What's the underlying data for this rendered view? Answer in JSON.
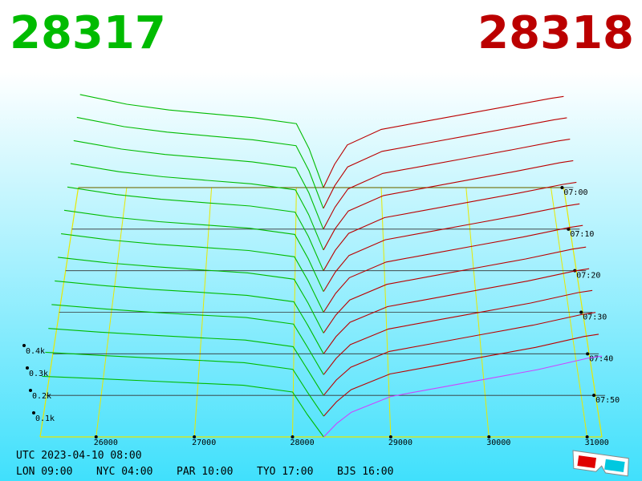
{
  "chart_data": {
    "type": "depth3d",
    "bid_label": "28317",
    "ask_label": "28318",
    "bid_color": "#00bb00",
    "ask_color": "#bb0000",
    "latest_color": "#cc44ff",
    "grid_color": "#e8e800",
    "xlim": [
      25430,
      31150
    ],
    "xticks": [
      26000,
      27000,
      28000,
      29000,
      30000,
      31000
    ],
    "ylim": [
      0,
      500
    ],
    "yticks": [
      {
        "value": 100,
        "label": "0.1k"
      },
      {
        "value": 200,
        "label": "0.2k"
      },
      {
        "value": 300,
        "label": "0.3k"
      },
      {
        "value": 400,
        "label": "0.4k"
      }
    ],
    "time_lim": [
      "07:00",
      "08:00"
    ],
    "time_ticks": [
      "07:00",
      "07:10",
      "07:20",
      "07:30",
      "07:40",
      "07:50"
    ],
    "bid_prices": [
      25450,
      26000,
      26500,
      27000,
      27500,
      28000,
      28150,
      28317
    ],
    "ask_prices": [
      28318,
      28450,
      28600,
      29000,
      29500,
      30000,
      30500,
      31000,
      31150
    ],
    "snapshots": [
      {
        "time": "07:00",
        "bids": [
          480,
          430,
          400,
          380,
          360,
          330,
          200,
          0
        ],
        "asks": [
          0,
          120,
          220,
          300,
          340,
          380,
          420,
          460,
          470
        ]
      },
      {
        "time": "07:05",
        "bids": [
          463,
          416,
          388,
          368,
          349,
          319,
          192,
          0
        ],
        "asks": [
          0,
          115,
          211,
          290,
          330,
          370,
          410,
          451,
          461
        ]
      },
      {
        "time": "07:10",
        "bids": [
          445,
          402,
          375,
          357,
          338,
          308,
          183,
          0
        ],
        "asks": [
          0,
          110,
          202,
          280,
          320,
          360,
          400,
          442,
          452
        ]
      },
      {
        "time": "07:15",
        "bids": [
          428,
          388,
          363,
          345,
          328,
          298,
          175,
          0
        ],
        "asks": [
          0,
          105,
          193,
          270,
          310,
          350,
          390,
          433,
          443
        ]
      },
      {
        "time": "07:20",
        "bids": [
          410,
          373,
          350,
          333,
          317,
          287,
          167,
          0
        ],
        "asks": [
          0,
          100,
          183,
          260,
          300,
          340,
          380,
          423,
          433
        ]
      },
      {
        "time": "07:25",
        "bids": [
          393,
          359,
          338,
          322,
          306,
          276,
          158,
          0
        ],
        "asks": [
          0,
          95,
          174,
          250,
          290,
          330,
          370,
          414,
          424
        ]
      },
      {
        "time": "07:30",
        "bids": [
          375,
          345,
          325,
          310,
          295,
          265,
          150,
          0
        ],
        "asks": [
          0,
          90,
          165,
          240,
          280,
          320,
          360,
          405,
          415
        ]
      },
      {
        "time": "07:35",
        "bids": [
          358,
          331,
          313,
          298,
          284,
          254,
          142,
          0
        ],
        "asks": [
          0,
          85,
          156,
          230,
          270,
          310,
          350,
          396,
          406
        ]
      },
      {
        "time": "07:40",
        "bids": [
          340,
          317,
          300,
          287,
          273,
          243,
          133,
          0
        ],
        "asks": [
          0,
          80,
          147,
          220,
          260,
          300,
          340,
          387,
          397
        ]
      },
      {
        "time": "07:45",
        "bids": [
          323,
          303,
          288,
          275,
          263,
          233,
          125,
          0
        ],
        "asks": [
          0,
          75,
          138,
          210,
          250,
          290,
          330,
          378,
          388
        ]
      },
      {
        "time": "07:50",
        "bids": [
          305,
          288,
          275,
          263,
          252,
          222,
          117,
          0
        ],
        "asks": [
          0,
          70,
          128,
          200,
          240,
          280,
          320,
          368,
          378
        ]
      },
      {
        "time": "07:55",
        "bids": [
          288,
          274,
          263,
          252,
          241,
          211,
          108,
          0
        ],
        "asks": [
          0,
          65,
          119,
          190,
          230,
          270,
          310,
          359,
          369
        ]
      },
      {
        "time": "08:00",
        "bids": [
          270,
          260,
          250,
          240,
          230,
          200,
          100,
          0
        ],
        "asks": [
          0,
          60,
          110,
          180,
          220,
          260,
          300,
          350,
          360
        ]
      }
    ]
  },
  "footer": {
    "utc": "UTC 2023-04-10 08:00",
    "cities": [
      "LON 09:00",
      "NYC 04:00",
      "PAR 10:00",
      "TYO 17:00",
      "BJS 16:00"
    ]
  }
}
